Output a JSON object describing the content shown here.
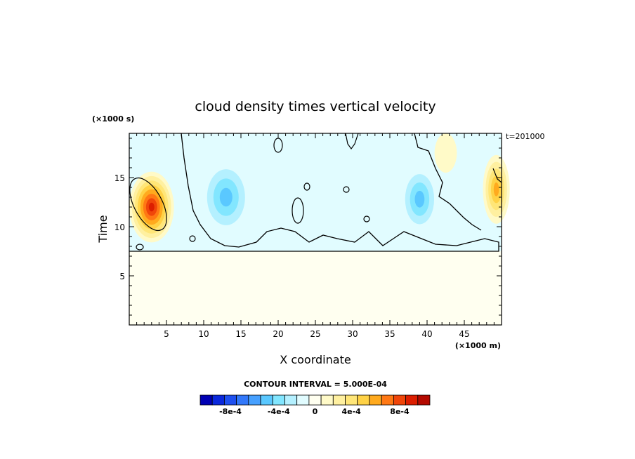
{
  "chart_data": {
    "type": "heatmap",
    "title": "cloud density times vertical velocity",
    "xlabel": "X coordinate",
    "ylabel": "Time",
    "x_unit_label": "(×1000 m)",
    "y_unit_label": "(×1000 s)",
    "time_stamp": "t=201000",
    "contour_interval_label": "CONTOUR INTERVAL = 5.000E-04",
    "xlim": [
      0,
      50
    ],
    "ylim": [
      0,
      19.5
    ],
    "xticks": [
      5,
      10,
      15,
      20,
      25,
      30,
      35,
      40,
      45
    ],
    "xtick_labels": [
      "5",
      "10",
      "15",
      "20",
      "25",
      "30",
      "35",
      "40",
      "45"
    ],
    "yticks": [
      5,
      10,
      15
    ],
    "ytick_labels": [
      "5",
      "10",
      "15"
    ],
    "background_value": 0,
    "features": [
      {
        "kind": "positive",
        "x": 3,
        "y": 12,
        "rx": 3,
        "ry": 3.6,
        "peak": 0.0008
      },
      {
        "kind": "negative",
        "x": 13,
        "y": 13,
        "rx": 3.4,
        "ry": 3.8,
        "peak": -0.0004
      },
      {
        "kind": "negative",
        "x": 26,
        "y": 11.8,
        "rx": 6.5,
        "ry": 2.2,
        "peak": -0.00015
      },
      {
        "kind": "negative",
        "x": 39,
        "y": 12.8,
        "rx": 2.6,
        "ry": 3.4,
        "peak": -0.0004
      },
      {
        "kind": "positive",
        "x": 49.3,
        "y": 13.8,
        "rx": 1.8,
        "ry": 3.5,
        "peak": 0.00045
      },
      {
        "kind": "positive",
        "x": 42.5,
        "y": 17.5,
        "rx": 1.5,
        "ry": 2,
        "peak": 0.00015
      }
    ],
    "colorbar": {
      "colors": [
        "#0000b4",
        "#0a28dc",
        "#1e50f0",
        "#3278fa",
        "#46a0ff",
        "#5ac8ff",
        "#82e6ff",
        "#b4f0ff",
        "#e1fcff",
        "#fffff0",
        "#fffac8",
        "#fff0a0",
        "#ffe678",
        "#ffd246",
        "#ffaa1e",
        "#ff7814",
        "#f0460a",
        "#dc1e00",
        "#b40a00"
      ],
      "tick_labels": [
        "-8e-4",
        "-4e-4",
        "0",
        "4e-4",
        "8e-4"
      ]
    }
  }
}
